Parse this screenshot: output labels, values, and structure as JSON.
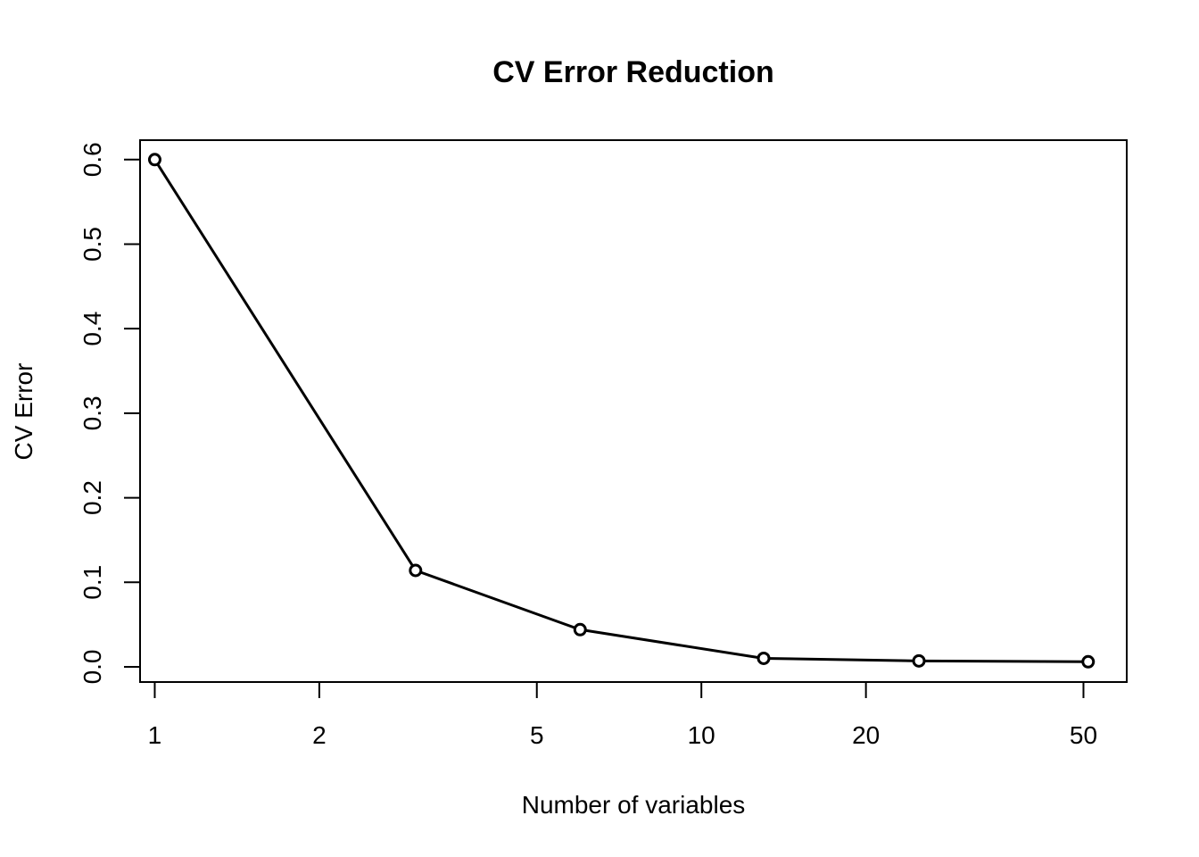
{
  "chart_data": {
    "type": "line",
    "title": "CV Error Reduction",
    "xlabel": "Number of variables",
    "ylabel": "CV Error",
    "x_scale": "log",
    "xlim": [
      0.94,
      60
    ],
    "ylim": [
      -0.018,
      0.623
    ],
    "x_ticks": [
      1,
      2,
      5,
      10,
      20,
      50
    ],
    "x_tick_labels": [
      "1",
      "2",
      "5",
      "10",
      "20",
      "50"
    ],
    "y_ticks": [
      0.0,
      0.1,
      0.2,
      0.3,
      0.4,
      0.5,
      0.6
    ],
    "y_tick_labels": [
      "0.0",
      "0.1",
      "0.2",
      "0.3",
      "0.4",
      "0.5",
      "0.6"
    ],
    "grid": false,
    "series": [
      {
        "x": [
          1,
          3,
          6,
          13,
          25,
          51
        ],
        "y": [
          0.6,
          0.114,
          0.044,
          0.01,
          0.007,
          0.006
        ]
      }
    ]
  }
}
